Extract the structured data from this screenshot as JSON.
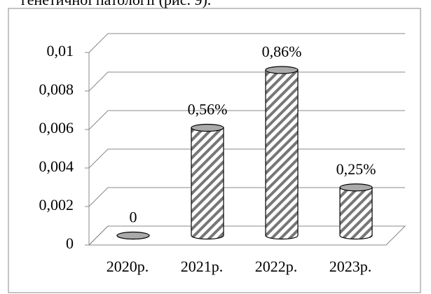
{
  "page_text": "генетичної патології (рис. 9).",
  "chart_data": {
    "type": "bar",
    "style": "3d-cylinder",
    "categories": [
      "2020р.",
      "2021р.",
      "2022р.",
      "2023р."
    ],
    "values": [
      0,
      0.0056,
      0.0086,
      0.0025
    ],
    "value_labels": [
      "0",
      "0,56%",
      "0,86%",
      "0,25%"
    ],
    "ylim": [
      0,
      0.01
    ],
    "yticks": [
      0,
      {
        "value": 0.002,
        "label": "0,002"
      },
      {
        "value": 0.004,
        "label": "0,004"
      },
      {
        "value": 0.006,
        "label": "0,006"
      },
      {
        "value": 0.008,
        "label": "0,008"
      },
      {
        "value": 0.01,
        "label": "0,01"
      }
    ],
    "grid": true
  }
}
